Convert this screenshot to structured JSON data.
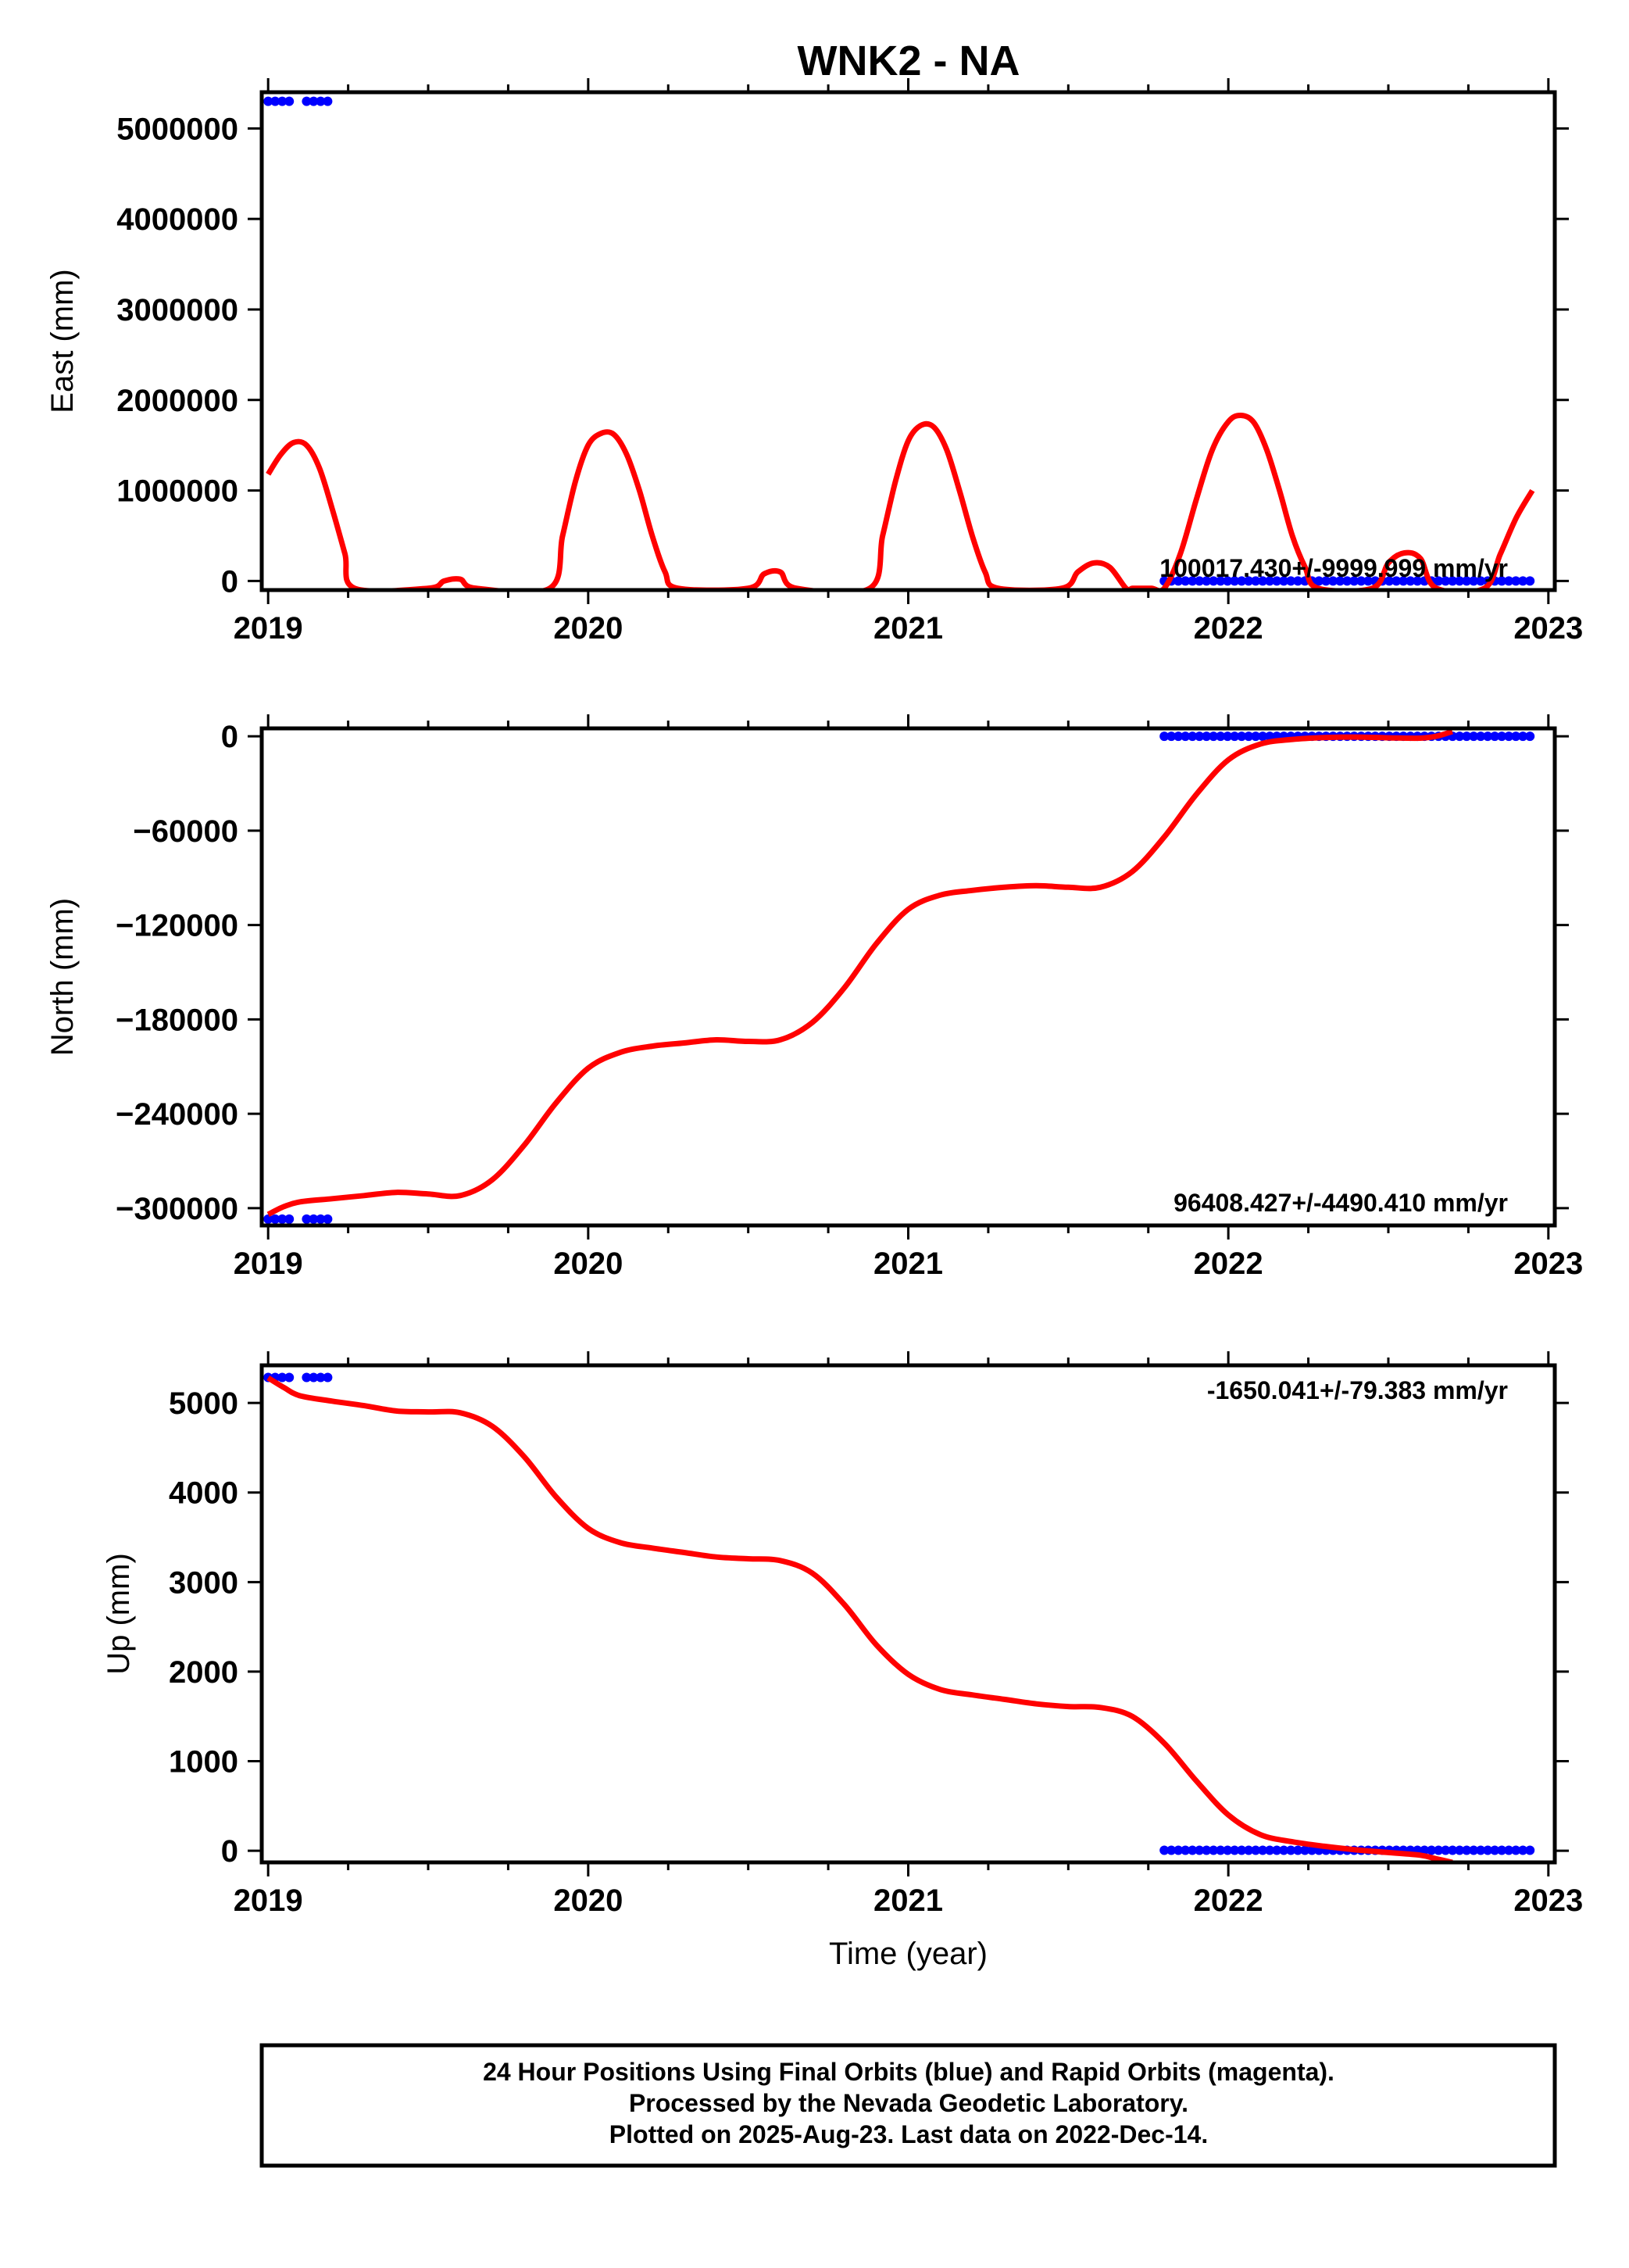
{
  "title": "WNK2 - NA",
  "colors": {
    "final": "#0000ff",
    "model": "#ff0000",
    "frame": "#000000"
  },
  "caption": {
    "lines": [
      "24 Hour Positions Using Final Orbits (blue) and Rapid Orbits (magenta).",
      "Processed by the Nevada Geodetic Laboratory.",
      "Plotted on 2025-Aug-23. Last data on 2022-Dec-14."
    ]
  },
  "chart_data": [
    {
      "type": "scatter",
      "ylabel": "East (mm)",
      "xlabel": "",
      "xlim": [
        2018.98,
        2023.02
      ],
      "ylim": [
        -100000,
        5400000
      ],
      "xticks": [
        2019,
        2020,
        2021,
        2022,
        2023
      ],
      "yticks": [
        0,
        1000000,
        2000000,
        3000000,
        4000000,
        5000000
      ],
      "ytick_labels": [
        "0",
        "1000000",
        "2000000",
        "3000000",
        "4000000",
        "5000000"
      ],
      "rate_label": "100017.430+/-9999.999 mm/yr",
      "series": [
        {
          "kind": "points",
          "color": "#0000ff",
          "segments": [
            {
              "x_start": 2019.0,
              "x_end": 2019.08,
              "y": 5300000
            },
            {
              "x_start": 2019.12,
              "x_end": 2019.2,
              "y": 5300000
            },
            {
              "x_start": 2021.8,
              "x_end": 2022.95,
              "y": 0
            }
          ]
        },
        {
          "kind": "line",
          "color": "#ff0000",
          "x": [
            2019.0,
            2019.04,
            2019.08,
            2019.12,
            2019.16,
            2019.2,
            2019.24,
            2019.27,
            2019.5,
            2019.55,
            2019.6,
            2019.65,
            2019.88,
            2019.92,
            2019.96,
            2020.0,
            2020.04,
            2020.08,
            2020.12,
            2020.16,
            2020.2,
            2020.24,
            2020.28,
            2020.5,
            2020.55,
            2020.6,
            2020.65,
            2020.88,
            2020.92,
            2020.96,
            2021.0,
            2021.04,
            2021.08,
            2021.12,
            2021.16,
            2021.2,
            2021.24,
            2021.28,
            2021.48,
            2021.53,
            2021.58,
            2021.63,
            2021.68,
            2021.7,
            2021.72,
            2021.76,
            2021.8,
            2021.85,
            2021.9,
            2021.95,
            2022.0,
            2022.04,
            2022.08,
            2022.12,
            2022.16,
            2022.2,
            2022.24,
            2022.28,
            2022.45,
            2022.5,
            2022.55,
            2022.6,
            2022.65,
            2022.8,
            2022.85,
            2022.9,
            2022.95
          ],
          "y": [
            1180000,
            1400000,
            1530000,
            1500000,
            1250000,
            800000,
            300000,
            -80000,
            -80000,
            0,
            20000,
            -80000,
            -80000,
            500000,
            1100000,
            1500000,
            1630000,
            1620000,
            1400000,
            1000000,
            500000,
            100000,
            -80000,
            -80000,
            80000,
            100000,
            -80000,
            -80000,
            500000,
            1100000,
            1550000,
            1720000,
            1700000,
            1450000,
            1000000,
            500000,
            100000,
            -80000,
            -80000,
            100000,
            200000,
            150000,
            -80000,
            -80000,
            -80000,
            -80000,
            -80000,
            300000,
            900000,
            1450000,
            1760000,
            1830000,
            1750000,
            1450000,
            1000000,
            500000,
            150000,
            -80000,
            -80000,
            200000,
            310000,
            250000,
            -80000,
            -80000,
            300000,
            700000,
            1000000
          ]
        }
      ]
    },
    {
      "type": "scatter",
      "ylabel": "North (mm)",
      "xlabel": "",
      "xlim": [
        2018.98,
        2023.02
      ],
      "ylim": [
        -311000,
        5000
      ],
      "xticks": [
        2019,
        2020,
        2021,
        2022,
        2023
      ],
      "yticks": [
        0,
        -60000,
        -120000,
        -180000,
        -240000,
        -300000
      ],
      "ytick_labels": [
        "0",
        "−60000",
        "−120000",
        "−180000",
        "−240000",
        "−300000"
      ],
      "rate_label": "96408.427+/-4490.410 mm/yr",
      "series": [
        {
          "kind": "points",
          "color": "#0000ff",
          "segments": [
            {
              "x_start": 2019.0,
              "x_end": 2019.08,
              "y": -307000
            },
            {
              "x_start": 2019.12,
              "x_end": 2019.2,
              "y": -307000
            },
            {
              "x_start": 2021.8,
              "x_end": 2022.95,
              "y": 0
            }
          ]
        },
        {
          "kind": "line",
          "color": "#ff0000",
          "x": [
            2019.0,
            2019.05,
            2019.1,
            2019.2,
            2019.3,
            2019.4,
            2019.5,
            2019.6,
            2019.7,
            2019.8,
            2019.9,
            2020.0,
            2020.1,
            2020.2,
            2020.3,
            2020.4,
            2020.5,
            2020.6,
            2020.7,
            2020.8,
            2020.9,
            2021.0,
            2021.1,
            2021.2,
            2021.3,
            2021.4,
            2021.5,
            2021.6,
            2021.7,
            2021.8,
            2021.9,
            2022.0,
            2022.1,
            2022.2,
            2022.3,
            2022.4,
            2022.5,
            2022.6,
            2022.65,
            2022.7
          ],
          "y": [
            -304000,
            -299000,
            -296000,
            -294000,
            -292000,
            -290000,
            -291000,
            -292000,
            -282000,
            -260000,
            -233000,
            -211000,
            -201000,
            -197000,
            -195000,
            -193000,
            -194000,
            -193000,
            -182000,
            -160000,
            -132000,
            -110000,
            -101000,
            -98000,
            -96000,
            -95000,
            -96000,
            -96000,
            -86000,
            -64000,
            -37000,
            -15000,
            -5000,
            -2000,
            -800,
            -500,
            -1000,
            -1200,
            0,
            3000
          ]
        }
      ]
    },
    {
      "type": "scatter",
      "ylabel": "Up (mm)",
      "xlabel": "Time (year)",
      "xlim": [
        2018.98,
        2023.02
      ],
      "ylim": [
        -130,
        5420
      ],
      "xticks": [
        2019,
        2020,
        2021,
        2022,
        2023
      ],
      "yticks": [
        0,
        1000,
        2000,
        3000,
        4000,
        5000
      ],
      "ytick_labels": [
        "0",
        "1000",
        "2000",
        "3000",
        "4000",
        "5000"
      ],
      "rate_label": "-1650.041+/-79.383 mm/yr",
      "series": [
        {
          "kind": "points",
          "color": "#0000ff",
          "segments": [
            {
              "x_start": 2019.0,
              "x_end": 2019.08,
              "y": 5285
            },
            {
              "x_start": 2019.12,
              "x_end": 2019.2,
              "y": 5285
            },
            {
              "x_start": 2021.8,
              "x_end": 2022.95,
              "y": 5
            }
          ]
        },
        {
          "kind": "line",
          "color": "#ff0000",
          "x": [
            2019.0,
            2019.05,
            2019.1,
            2019.2,
            2019.3,
            2019.4,
            2019.5,
            2019.6,
            2019.7,
            2019.8,
            2019.9,
            2020.0,
            2020.1,
            2020.2,
            2020.3,
            2020.4,
            2020.5,
            2020.6,
            2020.7,
            2020.8,
            2020.9,
            2021.0,
            2021.1,
            2021.2,
            2021.3,
            2021.4,
            2021.5,
            2021.6,
            2021.7,
            2021.8,
            2021.9,
            2022.0,
            2022.1,
            2022.2,
            2022.3,
            2022.4,
            2022.5,
            2022.6,
            2022.65,
            2022.7
          ],
          "y": [
            5280,
            5170,
            5080,
            5020,
            4970,
            4910,
            4900,
            4890,
            4740,
            4400,
            3950,
            3600,
            3440,
            3380,
            3330,
            3280,
            3260,
            3240,
            3100,
            2750,
            2300,
            1970,
            1800,
            1740,
            1690,
            1640,
            1610,
            1600,
            1500,
            1200,
            780,
            400,
            180,
            100,
            50,
            10,
            -20,
            -50,
            -90,
            -130
          ]
        }
      ]
    }
  ]
}
